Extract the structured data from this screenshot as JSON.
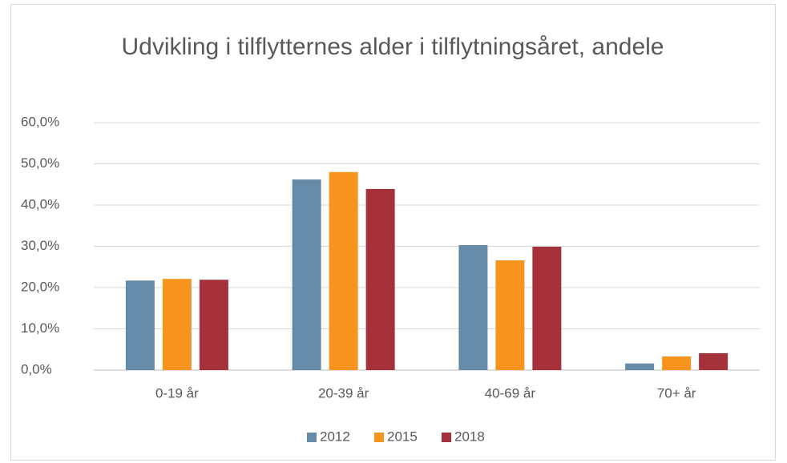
{
  "chart_data": {
    "type": "bar",
    "title": "Udvikling i tilflytternes alder i tilflytningsåret, andele",
    "categories": [
      "0-19 år",
      "20-39 år",
      "40-69 år",
      "70+ år"
    ],
    "series": [
      {
        "name": "2012",
        "color": "#668ba8",
        "values": [
          21.7,
          46.2,
          30.3,
          1.6
        ]
      },
      {
        "name": "2015",
        "color": "#f7941d",
        "values": [
          22.1,
          48.0,
          26.6,
          3.3
        ]
      },
      {
        "name": "2018",
        "color": "#a5323b",
        "values": [
          21.9,
          43.9,
          29.9,
          4.1
        ]
      }
    ],
    "ylim": [
      0,
      60
    ],
    "yticks": [
      {
        "value": 0,
        "label": "0,0%"
      },
      {
        "value": 10,
        "label": "10,0%"
      },
      {
        "value": 20,
        "label": "20,0%"
      },
      {
        "value": 30,
        "label": "30,0%"
      },
      {
        "value": 40,
        "label": "40,0%"
      },
      {
        "value": 50,
        "label": "50,0%"
      },
      {
        "value": 60,
        "label": "60,0%"
      }
    ],
    "grid": true,
    "legend": "bottom"
  }
}
